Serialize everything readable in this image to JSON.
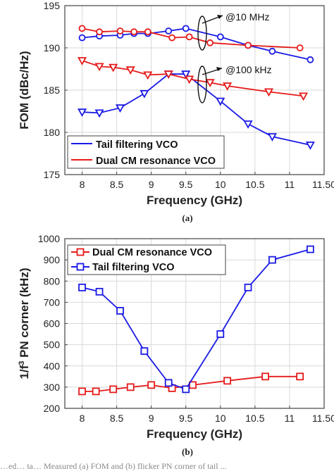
{
  "chart_data": [
    {
      "type": "line",
      "panel_label": "(a)",
      "xlabel": "Frequency (GHz)",
      "ylabel": "FOM (dBc/Hz)",
      "xlim": [
        7.75,
        11.5
      ],
      "ylim": [
        175,
        195
      ],
      "xticks": [
        "8",
        "8.5",
        "9",
        "9.5",
        "10",
        "10.5",
        "11",
        "11.50"
      ],
      "xtick_values": [
        8,
        8.5,
        9,
        9.5,
        10,
        10.5,
        11,
        11.5
      ],
      "yticks": [
        "175",
        "180",
        "185",
        "190",
        "195"
      ],
      "ytick_values": [
        175,
        180,
        185,
        190,
        195
      ],
      "grid": true,
      "legend_position": "bottom-left",
      "annotations": [
        "@10 MHz",
        "@100 kHz"
      ],
      "series": [
        {
          "name": "Tail filtering VCO",
          "color": "#1a1ae6",
          "marker": "circle",
          "x": [
            8,
            8.25,
            8.55,
            8.75,
            8.95,
            9.25,
            9.5,
            10,
            10.4,
            10.75,
            11.3
          ],
          "y": [
            191.2,
            191.4,
            191.5,
            191.7,
            191.7,
            192.0,
            192.3,
            191.3,
            190.3,
            189.6,
            188.6
          ]
        },
        {
          "name": "Dual CM resonance VCO",
          "color": "#e61a1a",
          "marker": "circle",
          "x": [
            8,
            8.25,
            8.55,
            8.75,
            8.95,
            9.3,
            9.55,
            9.85,
            10.4,
            11.15
          ],
          "y": [
            192.3,
            191.9,
            192.0,
            191.9,
            191.9,
            191.2,
            191.3,
            190.6,
            190.3,
            190.0
          ]
        },
        {
          "name": "Tail filtering VCO",
          "color": "#1a1ae6",
          "marker": "triangle-down",
          "x": [
            8,
            8.25,
            8.55,
            8.9,
            9.25,
            9.5,
            10,
            10.4,
            10.75,
            11.3
          ],
          "y": [
            182.4,
            182.3,
            182.9,
            184.6,
            186.9,
            186.9,
            183.7,
            181.0,
            179.5,
            178.5
          ]
        },
        {
          "name": "Dual CM resonance VCO",
          "color": "#e61a1a",
          "marker": "triangle-down",
          "x": [
            8,
            8.25,
            8.45,
            8.7,
            8.95,
            9.25,
            9.55,
            9.85,
            10.1,
            10.7,
            11.2
          ],
          "y": [
            188.5,
            187.8,
            187.7,
            187.4,
            186.8,
            186.9,
            186.3,
            185.9,
            185.5,
            184.8,
            184.3
          ]
        }
      ],
      "legend": [
        {
          "label": "Tail filtering VCO",
          "color": "#1a1ae6"
        },
        {
          "label": "Dual CM resonance VCO",
          "color": "#e61a1a"
        }
      ]
    },
    {
      "type": "line",
      "panel_label": "(b)",
      "xlabel": "Frequency (GHz)",
      "ylabel": "1/f³ PN corner (kHz)",
      "xlim": [
        7.75,
        11.5
      ],
      "ylim": [
        200,
        1000
      ],
      "xticks": [
        "8",
        "8.5",
        "9",
        "9.5",
        "10",
        "10.5",
        "11",
        "11.50"
      ],
      "xtick_values": [
        8,
        8.5,
        9,
        9.5,
        10,
        10.5,
        11,
        11.5
      ],
      "yticks": [
        "200",
        "300",
        "400",
        "500",
        "600",
        "700",
        "800",
        "900",
        "1000"
      ],
      "ytick_values": [
        200,
        300,
        400,
        500,
        600,
        700,
        800,
        900,
        1000
      ],
      "grid": true,
      "legend_position": "top-left",
      "series": [
        {
          "name": "Dual CM resonance VCO",
          "color": "#e61a1a",
          "marker": "square",
          "x": [
            8,
            8.2,
            8.45,
            8.7,
            9,
            9.3,
            9.6,
            10.1,
            10.65,
            11.15
          ],
          "y": [
            280,
            280,
            290,
            300,
            310,
            295,
            310,
            330,
            350,
            350
          ]
        },
        {
          "name": "Tail filtering VCO",
          "color": "#1a1ae6",
          "marker": "square",
          "x": [
            8,
            8.25,
            8.55,
            8.9,
            9.25,
            9.5,
            10,
            10.4,
            10.75,
            11.3
          ],
          "y": [
            770,
            750,
            660,
            470,
            320,
            290,
            550,
            770,
            900,
            950
          ]
        }
      ],
      "legend": [
        {
          "label": "Dual CM resonance VCO",
          "color": "#e61a1a"
        },
        {
          "label": "Tail filtering VCO",
          "color": "#1a1ae6"
        }
      ]
    }
  ],
  "figure_caption": "…ed… ta… Measured (a) FOM and (b) flicker PN corner of tail ..."
}
